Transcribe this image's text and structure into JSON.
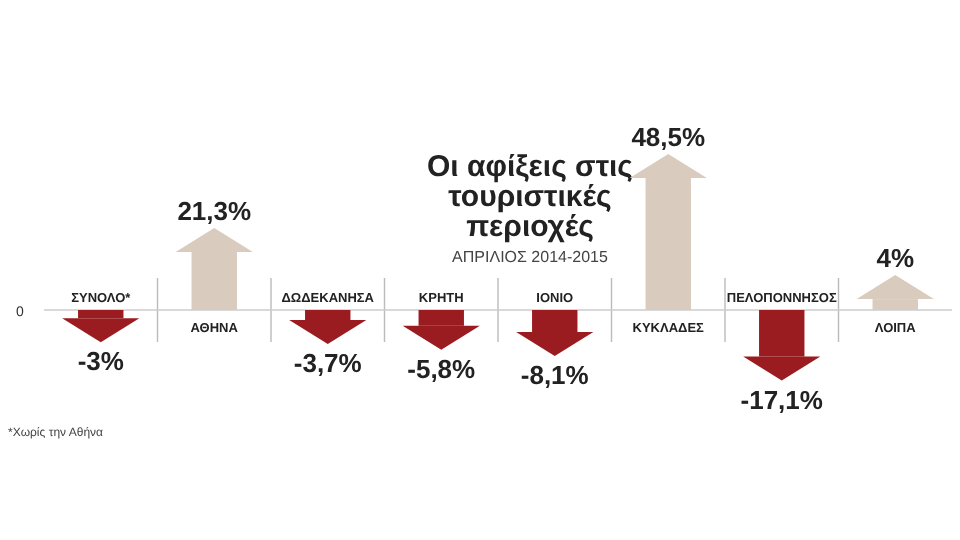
{
  "chart_data": {
    "type": "bar",
    "title": "Οι αφίξεις στις τουριστικές περιοχές",
    "subtitle": "ΑΠΡΙΛΙΟΣ 2014-2015",
    "categories": [
      "ΣΥΝΟΛΟ*",
      "ΑΘΗΝΑ",
      "ΔΩΔΕΚΑΝΗΣΑ",
      "ΚΡΗΤΗ",
      "ΙΟΝΙΟ",
      "ΚΥΚΛΑΔΕΣ",
      "ΠΕΛΟΠΟΝΝΗΣΟΣ",
      "ΛΟΙΠΑ"
    ],
    "values": [
      -3,
      21.3,
      -3.7,
      -5.8,
      -8.1,
      48.5,
      -17.1,
      4
    ],
    "value_labels": [
      "-3%",
      "21,3%",
      "-3,7%",
      "-5,8%",
      "-8,1%",
      "48,5%",
      "-17,1%",
      "4%"
    ],
    "colors": [
      "#9a1c20",
      "#d9cbbd",
      "#9a1c20",
      "#9a1c20",
      "#9a1c20",
      "#d9cbbd",
      "#9a1c20",
      "#d9cbbd"
    ],
    "annotations": [
      "0",
      "*Χωρίς την Αθήνα"
    ]
  }
}
